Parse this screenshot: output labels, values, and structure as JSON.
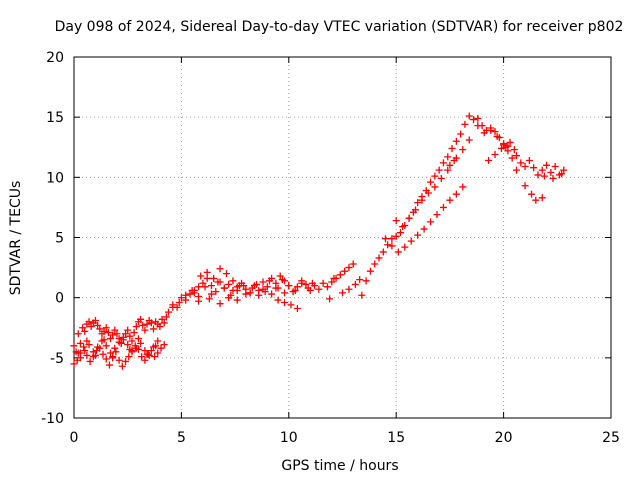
{
  "chart_data": {
    "type": "scatter",
    "title": "Day 098 of 2024, Sidereal Day-to-day VTEC variation (SDTVAR) for receiver p802",
    "xlabel": "GPS time / hours",
    "ylabel": "SDTVAR / TECUs",
    "xlim": [
      0,
      25
    ],
    "ylim": [
      -10,
      20
    ],
    "xticks": [
      "0",
      "5",
      "10",
      "15",
      "20",
      "25"
    ],
    "yticks": [
      "-10",
      "-5",
      "0",
      "5",
      "10",
      "15",
      "20"
    ],
    "grid": true,
    "marker": "plus",
    "colors": {
      "series": "#ff0000",
      "grid": "#a0a0a0",
      "axis": "#000000"
    },
    "series": [
      {
        "name": "p802",
        "x": [
          0.0,
          0.1,
          0.2,
          0.3,
          0.4,
          0.5,
          0.6,
          0.7,
          0.8,
          0.9,
          1.0,
          1.1,
          1.2,
          1.3,
          1.4,
          1.5,
          1.6,
          1.7,
          1.8,
          1.9,
          2.0,
          2.1,
          2.2,
          2.3,
          2.4,
          2.5,
          2.6,
          2.7,
          2.8,
          2.9,
          3.0,
          3.1,
          3.2,
          3.3,
          3.4,
          3.5,
          3.6,
          3.7,
          3.8,
          3.9,
          4.0,
          4.1,
          4.2,
          4.3,
          0.0,
          0.15,
          0.3,
          0.45,
          0.6,
          0.75,
          0.9,
          1.05,
          1.2,
          1.35,
          1.5,
          1.65,
          1.8,
          1.95,
          2.1,
          2.25,
          2.4,
          2.55,
          2.7,
          2.85,
          3.0,
          3.15,
          3.3,
          3.45,
          3.6,
          3.75,
          3.9,
          4.05,
          4.2,
          0.3,
          0.5,
          0.7,
          0.9,
          1.1,
          1.3,
          1.5,
          1.7,
          1.9,
          2.1,
          2.3,
          2.5,
          2.7,
          2.9,
          3.1,
          3.3,
          3.5,
          3.7,
          3.9,
          0.2,
          0.6,
          1.0,
          1.4,
          1.8,
          2.2,
          2.6,
          3.0,
          3.4,
          3.8,
          4.4,
          4.6,
          4.8,
          5.0,
          5.2,
          5.4,
          5.6,
          5.8,
          6.0,
          6.2,
          6.4,
          6.6,
          6.8,
          7.0,
          7.2,
          7.4,
          7.6,
          7.8,
          8.0,
          8.2,
          8.4,
          8.6,
          8.8,
          9.0,
          9.2,
          9.4,
          9.6,
          9.8,
          10.0,
          10.2,
          10.4,
          10.6,
          10.8,
          11.0,
          11.2,
          11.4,
          11.6,
          11.8,
          12.0,
          12.2,
          12.4,
          12.6,
          12.8,
          13.0,
          4.6,
          4.9,
          5.2,
          5.5,
          5.8,
          6.1,
          6.4,
          6.7,
          7.0,
          7.3,
          7.6,
          7.9,
          8.2,
          8.5,
          8.8,
          9.1,
          9.4,
          9.7,
          10.0,
          10.3,
          10.6,
          10.9,
          5.6,
          5.9,
          6.2,
          6.5,
          6.8,
          7.1,
          7.4,
          7.7,
          8.0,
          8.3,
          8.6,
          8.9,
          9.2,
          9.5,
          9.8,
          5.8,
          6.3,
          6.8,
          7.2,
          7.6,
          9.5,
          9.8,
          10.1,
          10.4,
          11.1,
          11.9,
          12.1,
          12.5,
          12.8,
          13.1,
          13.3,
          13.4,
          13.6,
          13.8,
          14.0,
          14.2,
          14.4,
          14.6,
          14.8,
          15.0,
          15.2,
          15.4,
          15.6,
          15.8,
          16.0,
          16.2,
          16.4,
          16.6,
          16.8,
          17.0,
          17.2,
          17.4,
          17.6,
          17.8,
          18.0,
          18.2,
          14.5,
          14.8,
          15.1,
          15.4,
          15.7,
          16.0,
          16.3,
          16.6,
          16.9,
          17.2,
          17.5,
          17.8,
          18.1,
          15.0,
          15.3,
          15.6,
          15.9,
          16.2,
          16.5,
          16.8,
          17.1,
          17.4,
          17.7,
          17.5,
          17.8,
          18.1,
          18.4,
          18.4,
          18.6,
          18.8,
          19.0,
          19.2,
          19.4,
          19.6,
          19.8,
          20.0,
          20.2,
          18.8,
          19.1,
          19.4,
          19.7,
          20.0,
          19.3,
          19.6,
          19.9,
          20.2,
          20.1,
          20.3,
          20.5,
          20.4,
          20.6,
          20.8,
          21.0,
          21.2,
          21.4,
          21.6,
          21.8,
          22.0,
          22.2,
          22.4,
          22.6,
          22.8,
          21.9,
          22.3,
          22.7,
          20.6,
          21.0,
          21.3,
          21.5,
          21.8
        ],
        "y": [
          -4.0,
          -4.5,
          -3.0,
          -3.8,
          -2.5,
          -2.8,
          -2.2,
          -2.0,
          -2.4,
          -2.1,
          -1.9,
          -2.3,
          -2.6,
          -3.0,
          -2.8,
          -2.5,
          -2.9,
          -3.4,
          -3.1,
          -2.7,
          -3.0,
          -3.4,
          -3.8,
          -3.5,
          -3.0,
          -2.7,
          -3.2,
          -3.6,
          -2.9,
          -2.4,
          -2.0,
          -1.8,
          -2.3,
          -2.7,
          -2.2,
          -1.9,
          -2.1,
          -2.6,
          -2.0,
          -2.2,
          -2.4,
          -1.8,
          -2.1,
          -1.6,
          -5.5,
          -5.2,
          -4.6,
          -4.1,
          -4.8,
          -5.3,
          -4.9,
          -4.4,
          -4.2,
          -4.7,
          -5.1,
          -5.6,
          -5.0,
          -4.5,
          -5.2,
          -5.7,
          -5.3,
          -4.9,
          -4.4,
          -4.0,
          -4.3,
          -4.9,
          -5.2,
          -4.7,
          -4.4,
          -4.9,
          -4.6,
          -4.2,
          -3.9,
          -5.0,
          -4.4,
          -3.9,
          -4.5,
          -4.1,
          -3.6,
          -4.0,
          -4.6,
          -4.2,
          -3.7,
          -3.3,
          -3.9,
          -4.5,
          -4.2,
          -3.8,
          -4.4,
          -4.8,
          -4.1,
          -3.6,
          -4.6,
          -3.6,
          -4.8,
          -3.5,
          -4.9,
          -3.8,
          -4.3,
          -3.4,
          -4.7,
          -4.0,
          -1.2,
          -0.6,
          -0.8,
          0.0,
          -0.2,
          0.3,
          0.6,
          0.9,
          1.2,
          1.6,
          1.0,
          0.5,
          1.3,
          0.8,
          1.1,
          0.6,
          0.9,
          1.2,
          0.7,
          0.4,
          1.0,
          0.6,
          1.3,
          0.9,
          1.6,
          1.2,
          1.8,
          1.4,
          1.0,
          0.5,
          0.9,
          1.4,
          1.1,
          0.6,
          1.0,
          0.7,
          1.2,
          0.9,
          1.3,
          1.6,
          1.9,
          2.2,
          2.5,
          2.8,
          -0.8,
          -0.4,
          0.2,
          0.6,
          0.1,
          0.9,
          0.3,
          1.3,
          0.8,
          0.2,
          0.6,
          1.0,
          0.4,
          1.1,
          0.7,
          1.4,
          0.8,
          1.5,
          1.0,
          0.6,
          1.2,
          0.8,
          0.4,
          1.8,
          2.1,
          1.6,
          2.4,
          2.0,
          1.4,
          1.0,
          0.3,
          0.8,
          0.2,
          0.5,
          0.3,
          0.8,
          0.4,
          -0.3,
          -0.1,
          -0.5,
          0.0,
          -0.2,
          -0.2,
          -0.4,
          -0.6,
          -0.9,
          1.2,
          -0.1,
          1.6,
          0.4,
          0.7,
          1.1,
          1.5,
          0.2,
          1.4,
          2.2,
          2.8,
          3.3,
          3.8,
          4.4,
          4.9,
          5.1,
          5.4,
          6.0,
          6.6,
          7.1,
          7.9,
          8.4,
          8.9,
          9.6,
          10.1,
          10.6,
          11.2,
          11.7,
          12.4,
          13.0,
          13.6,
          14.4,
          4.9,
          4.3,
          3.8,
          4.2,
          4.7,
          5.2,
          5.7,
          6.3,
          6.9,
          7.5,
          8.1,
          8.6,
          9.2,
          6.4,
          5.9,
          6.6,
          7.3,
          8.1,
          8.7,
          9.2,
          9.9,
          10.6,
          11.4,
          11.0,
          11.6,
          12.3,
          13.1,
          15.1,
          14.8,
          14.9,
          14.3,
          13.9,
          14.1,
          13.8,
          13.3,
          12.8,
          12.6,
          14.3,
          13.7,
          13.9,
          13.4,
          12.7,
          11.4,
          11.9,
          12.4,
          12.2,
          12.5,
          12.9,
          12.3,
          11.6,
          11.8,
          11.2,
          10.9,
          11.4,
          10.8,
          10.2,
          10.6,
          11.0,
          10.4,
          10.9,
          10.2,
          10.6,
          10.1,
          9.9,
          10.3,
          10.6,
          9.3,
          8.6,
          8.1,
          8.3
        ]
      }
    ]
  }
}
